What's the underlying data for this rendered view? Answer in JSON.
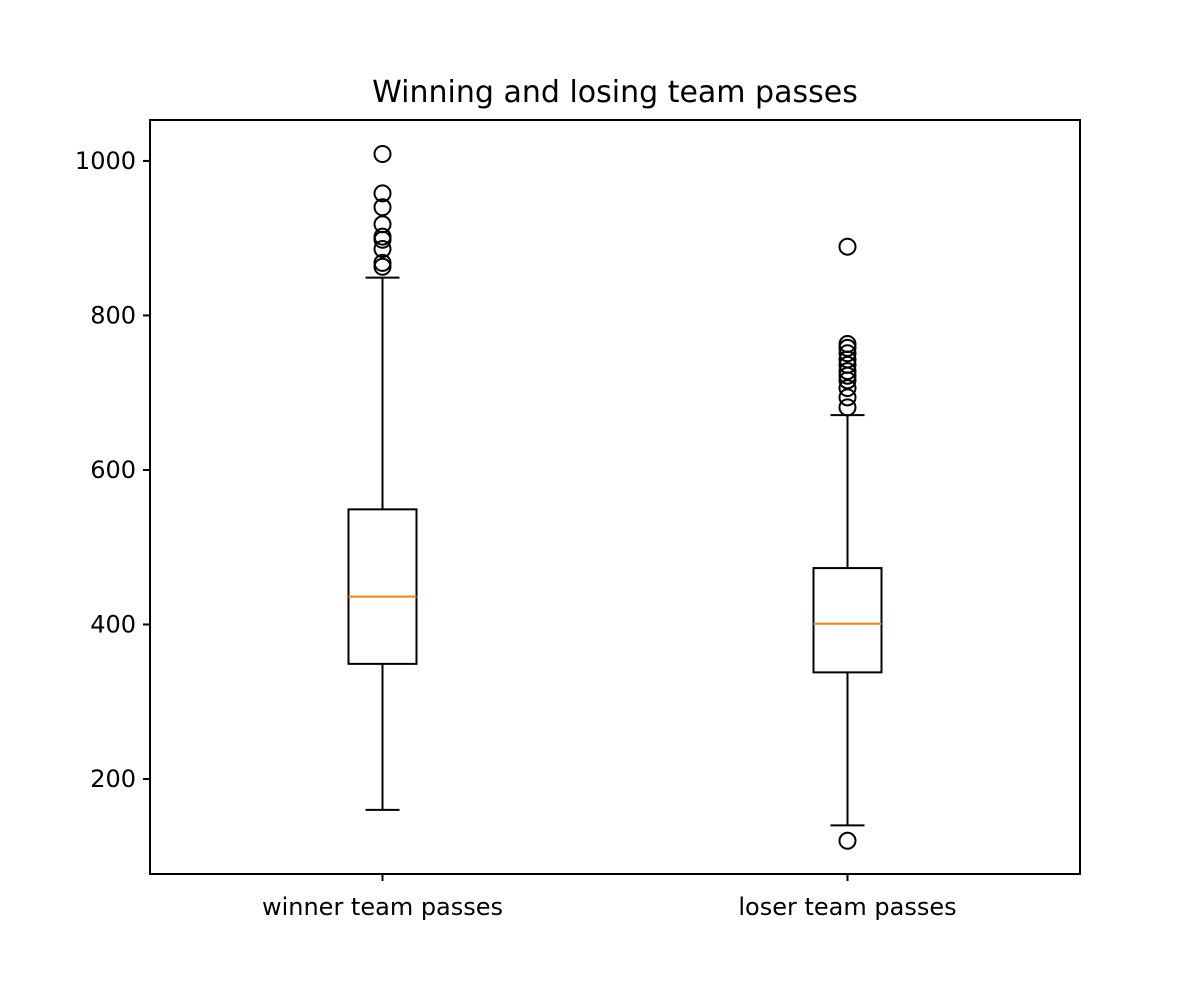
{
  "chart_data": {
    "type": "boxplot",
    "title": "Winning and losing team passes",
    "xlabel": "",
    "ylabel": "",
    "ylim": [
      77,
      1053
    ],
    "yticks": [
      200,
      400,
      600,
      800,
      1000
    ],
    "ytick_labels": [
      "200",
      "400",
      "600",
      "800",
      "1000"
    ],
    "categories": [
      "winner team passes",
      "loser team passes"
    ],
    "boxes": [
      {
        "whisker_low": 160,
        "q1": 349,
        "median": 436,
        "q3": 549,
        "whisker_high": 849,
        "outliers": [
          863,
          868,
          886,
          898,
          902,
          918,
          940,
          958,
          1009
        ]
      },
      {
        "whisker_low": 140,
        "q1": 338,
        "median": 401,
        "q3": 473,
        "whisker_high": 671,
        "outliers": [
          120,
          681,
          694,
          706,
          716,
          722,
          728,
          736,
          743,
          751,
          758,
          763,
          889
        ]
      }
    ],
    "colors": {
      "box": "#000000",
      "median": "#ff7f0e",
      "outlier": "#000000"
    },
    "grid": false,
    "legend": "none"
  }
}
